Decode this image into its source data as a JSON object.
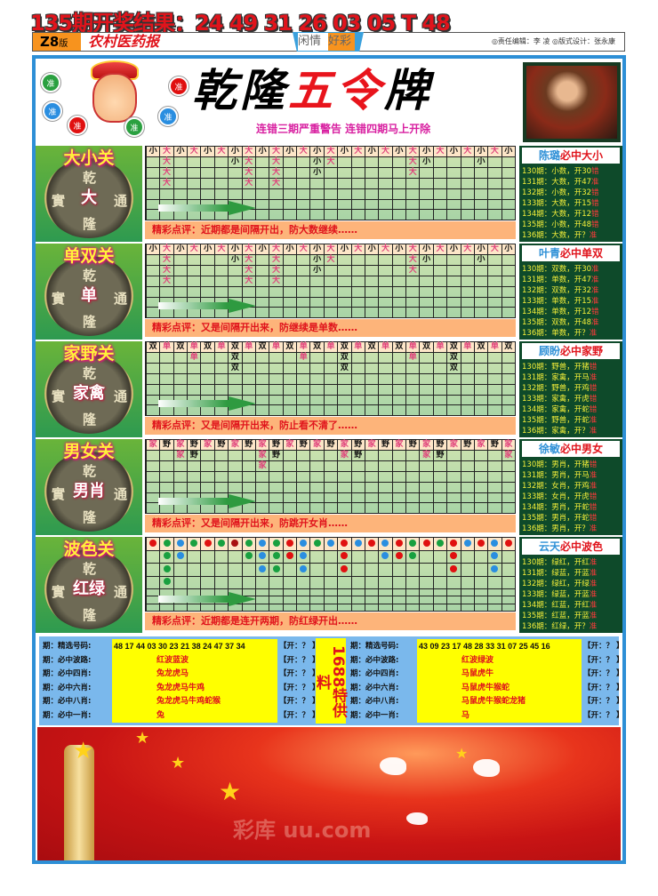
{
  "headline": "135期开奖结果：24 49 31 26 03 05 T 48",
  "header": {
    "edition": "Z8",
    "edition_suffix": "版",
    "paper": "农村医药报",
    "tab_a": "闲情",
    "tab_b": "好彩",
    "credits": "◎责任编辑：李 凌  ◎版式设计：张永康"
  },
  "title": {
    "part1": "乾隆",
    "part2": "五令",
    "part3": "牌",
    "subtitle": "连错三期严重警告 连错四期马上开除",
    "ball_text": "准"
  },
  "coin_chars": [
    "乾",
    "實",
    "通",
    "隆"
  ],
  "colors": {
    "accent_blue": "#2d8fd6",
    "red": "#e0141c",
    "pink": "#e0407a",
    "dot_r": "#e01010",
    "dot_g": "#18a040",
    "dot_b": "#2a8ee0",
    "dot_R": "#a81010"
  },
  "sections": [
    {
      "label": "大小关",
      "mid": "大",
      "type": "text",
      "hi": [
        "大"
      ],
      "grid": [
        [
          "小",
          "大",
          "小",
          "大",
          "小",
          "大",
          "小",
          "大",
          "小",
          "大",
          "小",
          "大",
          "小",
          "大",
          "小",
          "大",
          "小",
          "大",
          "小",
          "大",
          "小",
          "大",
          "小",
          "大",
          "小",
          "大",
          "小"
        ],
        [
          "",
          "大",
          "",
          "",
          "",
          "",
          "小",
          "大",
          "",
          "大",
          "",
          "",
          "小",
          "大",
          "",
          "",
          "",
          "",
          "",
          "大",
          "小",
          "",
          "",
          "",
          "小",
          "",
          ""
        ],
        [
          "",
          "大",
          "",
          "",
          "",
          "",
          "",
          "大",
          "",
          "大",
          "",
          "",
          "小",
          "",
          "",
          "",
          "",
          "",
          "",
          "大",
          "",
          "",
          "",
          "",
          "",
          "",
          ""
        ],
        [
          "",
          "大",
          "",
          "",
          "",
          "",
          "",
          "大",
          "",
          "大",
          "",
          "",
          "",
          "",
          "",
          "",
          "",
          "",
          "",
          "",
          "",
          "",
          "",
          "",
          "",
          "",
          ""
        ]
      ],
      "comment": "精彩点评：近期都是间隔开出，防大数继续……",
      "side": {
        "name": "陈璐",
        "title": "必中大小",
        "lines": [
          [
            "130期：小数，开30",
            "错"
          ],
          [
            "131期：大数，开47",
            "准"
          ],
          [
            "132期：小数，开32",
            "错"
          ],
          [
            "133期：大数，开15",
            "错"
          ],
          [
            "134期：大数，开12",
            "错"
          ],
          [
            "135期：小数，开48",
            "错"
          ],
          [
            "136期：大数，开？",
            "准"
          ]
        ]
      }
    },
    {
      "label": "单双关",
      "mid": "单",
      "type": "text",
      "hi": [
        "大"
      ],
      "grid": [
        [
          "小",
          "大",
          "小",
          "大",
          "小",
          "大",
          "小",
          "大",
          "小",
          "大",
          "小",
          "大",
          "小",
          "大",
          "小",
          "大",
          "小",
          "大",
          "小",
          "大",
          "小",
          "大",
          "小",
          "大",
          "小",
          "大",
          "小"
        ],
        [
          "",
          "大",
          "",
          "",
          "",
          "",
          "小",
          "大",
          "",
          "大",
          "",
          "",
          "小",
          "大",
          "",
          "",
          "",
          "",
          "",
          "大",
          "小",
          "",
          "",
          "",
          "小",
          "",
          ""
        ],
        [
          "",
          "大",
          "",
          "",
          "",
          "",
          "",
          "大",
          "",
          "大",
          "",
          "",
          "小",
          "",
          "",
          "",
          "",
          "",
          "",
          "大",
          "",
          "",
          "",
          "",
          "",
          "",
          ""
        ],
        [
          "",
          "大",
          "",
          "",
          "",
          "",
          "",
          "大",
          "",
          "大",
          "",
          "",
          "",
          "",
          "",
          "",
          "",
          "",
          "",
          "",
          "",
          "",
          "",
          "",
          "",
          "",
          ""
        ]
      ],
      "comment": "精彩点评：又是间隔开出来，防继续是单数……",
      "side": {
        "name": "叶青",
        "title": "必中单双",
        "lines": [
          [
            "130期：双数，开30",
            "准"
          ],
          [
            "131期：单数，开47",
            "准"
          ],
          [
            "132期：双数，开32",
            "准"
          ],
          [
            "133期：单数，开15",
            "准"
          ],
          [
            "134期：单数，开12",
            "错"
          ],
          [
            "135期：双数，开48",
            "准"
          ],
          [
            "136期：单数，开？",
            "准"
          ]
        ]
      }
    },
    {
      "label": "家野关",
      "mid": "家禽",
      "type": "text",
      "hi": [
        "单"
      ],
      "grid": [
        [
          "双",
          "单",
          "双",
          "单",
          "双",
          "单",
          "双",
          "单",
          "双",
          "单",
          "双",
          "单",
          "双",
          "单",
          "双",
          "单",
          "双",
          "单",
          "双",
          "单",
          "双",
          "单",
          "双",
          "单",
          "双",
          "单",
          "双"
        ],
        [
          "",
          "",
          "",
          "单",
          "",
          "",
          "双",
          "",
          "",
          "",
          "",
          "单",
          "",
          "",
          "双",
          "",
          "",
          "",
          "",
          "单",
          "",
          "",
          "双",
          "",
          "",
          "",
          ""
        ],
        [
          "",
          "",
          "",
          "",
          "",
          "",
          "双",
          "",
          "",
          "",
          "",
          "",
          "",
          "",
          "双",
          "",
          "",
          "",
          "",
          "",
          "",
          "",
          "双",
          "",
          "",
          "",
          ""
        ]
      ],
      "comment": "精彩点评：又是间隔开出来，防止看不清了……",
      "side": {
        "name": "顾盼",
        "title": "必中家野",
        "lines": [
          [
            "130期：野兽，开猪",
            "错"
          ],
          [
            "131期：家禽，开马",
            "准"
          ],
          [
            "132期：野兽，开鸡",
            "错"
          ],
          [
            "133期：家禽，开虎",
            "错"
          ],
          [
            "134期：家禽，开蛇",
            "错"
          ],
          [
            "135期：野兽，开蛇",
            "准"
          ],
          [
            "136期：家禽，开？",
            "准"
          ]
        ]
      }
    },
    {
      "label": "男女关",
      "mid": "男肖",
      "type": "text",
      "hi": [
        "家"
      ],
      "grid": [
        [
          "家",
          "野",
          "家",
          "野",
          "家",
          "野",
          "家",
          "野",
          "家",
          "野",
          "家",
          "野",
          "家",
          "野",
          "家",
          "野",
          "家",
          "野",
          "家",
          "野",
          "家",
          "野",
          "家",
          "野",
          "家",
          "野",
          "家"
        ],
        [
          "",
          "",
          "家",
          "野",
          "",
          "",
          "",
          "",
          "家",
          "野",
          "",
          "",
          "",
          "",
          "家",
          "野",
          "",
          "",
          "",
          "",
          "家",
          "野",
          "",
          "",
          "",
          "",
          "家"
        ],
        [
          "",
          "",
          "",
          "",
          "",
          "",
          "",
          "",
          "家",
          "",
          "",
          "",
          "",
          "",
          "",
          "",
          "",
          "",
          "",
          "",
          "",
          "",
          "",
          "",
          "",
          "",
          ""
        ]
      ],
      "comment": "精彩点评：又是间隔开出来，防跳开女肖……",
      "side": {
        "name": "徐敏",
        "title": "必中男女",
        "lines": [
          [
            "130期：男肖，开猪",
            "错"
          ],
          [
            "131期：男肖，开马",
            "准"
          ],
          [
            "132期：女肖，开鸡",
            "准"
          ],
          [
            "133期：女肖，开虎",
            "错"
          ],
          [
            "134期：男肖，开蛇",
            "错"
          ],
          [
            "135期：男肖，开蛇",
            "错"
          ],
          [
            "136期：男肖，开？",
            "准"
          ]
        ]
      }
    },
    {
      "label": "波色关",
      "mid": "红绿",
      "type": "dot",
      "hi": [],
      "grid": [
        [
          "r",
          "g",
          "b",
          "g",
          "r",
          "g",
          "R",
          "g",
          "b",
          "g",
          "r",
          "b",
          "g",
          "b",
          "r",
          "b",
          "r",
          "b",
          "r",
          "g",
          "r",
          "g",
          "r",
          "b",
          "r",
          "b",
          "r"
        ],
        [
          "",
          "g",
          "b",
          "",
          "",
          "",
          "",
          "g",
          "b",
          "g",
          "r",
          "b",
          "",
          "",
          "r",
          "",
          "",
          "b",
          "r",
          "g",
          "",
          "",
          "r",
          "",
          "",
          "b",
          ""
        ],
        [
          "",
          "g",
          "",
          "",
          "",
          "",
          "",
          "",
          "b",
          "g",
          "",
          "b",
          "",
          "",
          "r",
          "",
          "",
          "",
          "",
          "",
          "",
          "",
          "r",
          "",
          "",
          "b",
          ""
        ],
        [
          "",
          "g",
          "",
          "",
          "",
          "",
          "",
          "",
          "",
          "",
          "",
          "",
          "",
          "",
          "",
          "",
          "",
          "",
          "",
          "",
          "",
          "",
          "",
          "",
          "",
          "",
          ""
        ]
      ],
      "comment": "精彩点评：近期都是连开两期，防红绿开出……",
      "side": {
        "name": "云天",
        "title": "必中波色",
        "lines": [
          [
            "130期：绿红，开红",
            "准"
          ],
          [
            "131期：绿蓝，开蓝",
            "准"
          ],
          [
            "132期：绿红，开绿",
            "准"
          ],
          [
            "133期：绿蓝，开蓝",
            "准"
          ],
          [
            "134期：红蓝，开红",
            "准"
          ],
          [
            "135期：红蓝，开蓝",
            "准"
          ],
          [
            "136期：红绿，开？",
            "准"
          ]
        ]
      }
    }
  ],
  "bottom": {
    "center": "1688特供料",
    "left": [
      [
        "期：精选号码:",
        "48 17 44 03 30 23 21 38 24 47 37 34",
        "【开：？ 】"
      ],
      [
        "期：必中波路:",
        "红波蓝波",
        "【开：？ 】"
      ],
      [
        "期：必中四肖:",
        "兔龙虎马",
        "【开：？ 】"
      ],
      [
        "期：必中六肖:",
        "兔龙虎马牛鸡",
        "【开：？ 】"
      ],
      [
        "期：必中八肖:",
        "兔龙虎马牛鸡蛇猴",
        "【开：？ 】"
      ],
      [
        "期：必中一肖:",
        "兔",
        "【开：？ 】"
      ]
    ],
    "right": [
      [
        "期：精选号码:",
        "43 09 23 17 48 28 33 31 07 25 45 16",
        "【开：？ 】"
      ],
      [
        "期：必中波路:",
        "红波绿波",
        "【开：？ 】"
      ],
      [
        "期：必中四肖:",
        "马鼠虎牛",
        "【开：？ 】"
      ],
      [
        "期：必中六肖:",
        "马鼠虎牛猴蛇",
        "【开：？ 】"
      ],
      [
        "期：必中八肖:",
        "马鼠虎牛猴蛇龙猪",
        "【开：？ 】"
      ],
      [
        "期：必中一肖:",
        "马",
        "【开：？ 】"
      ]
    ]
  },
  "watermark": "彩库 uu.com"
}
